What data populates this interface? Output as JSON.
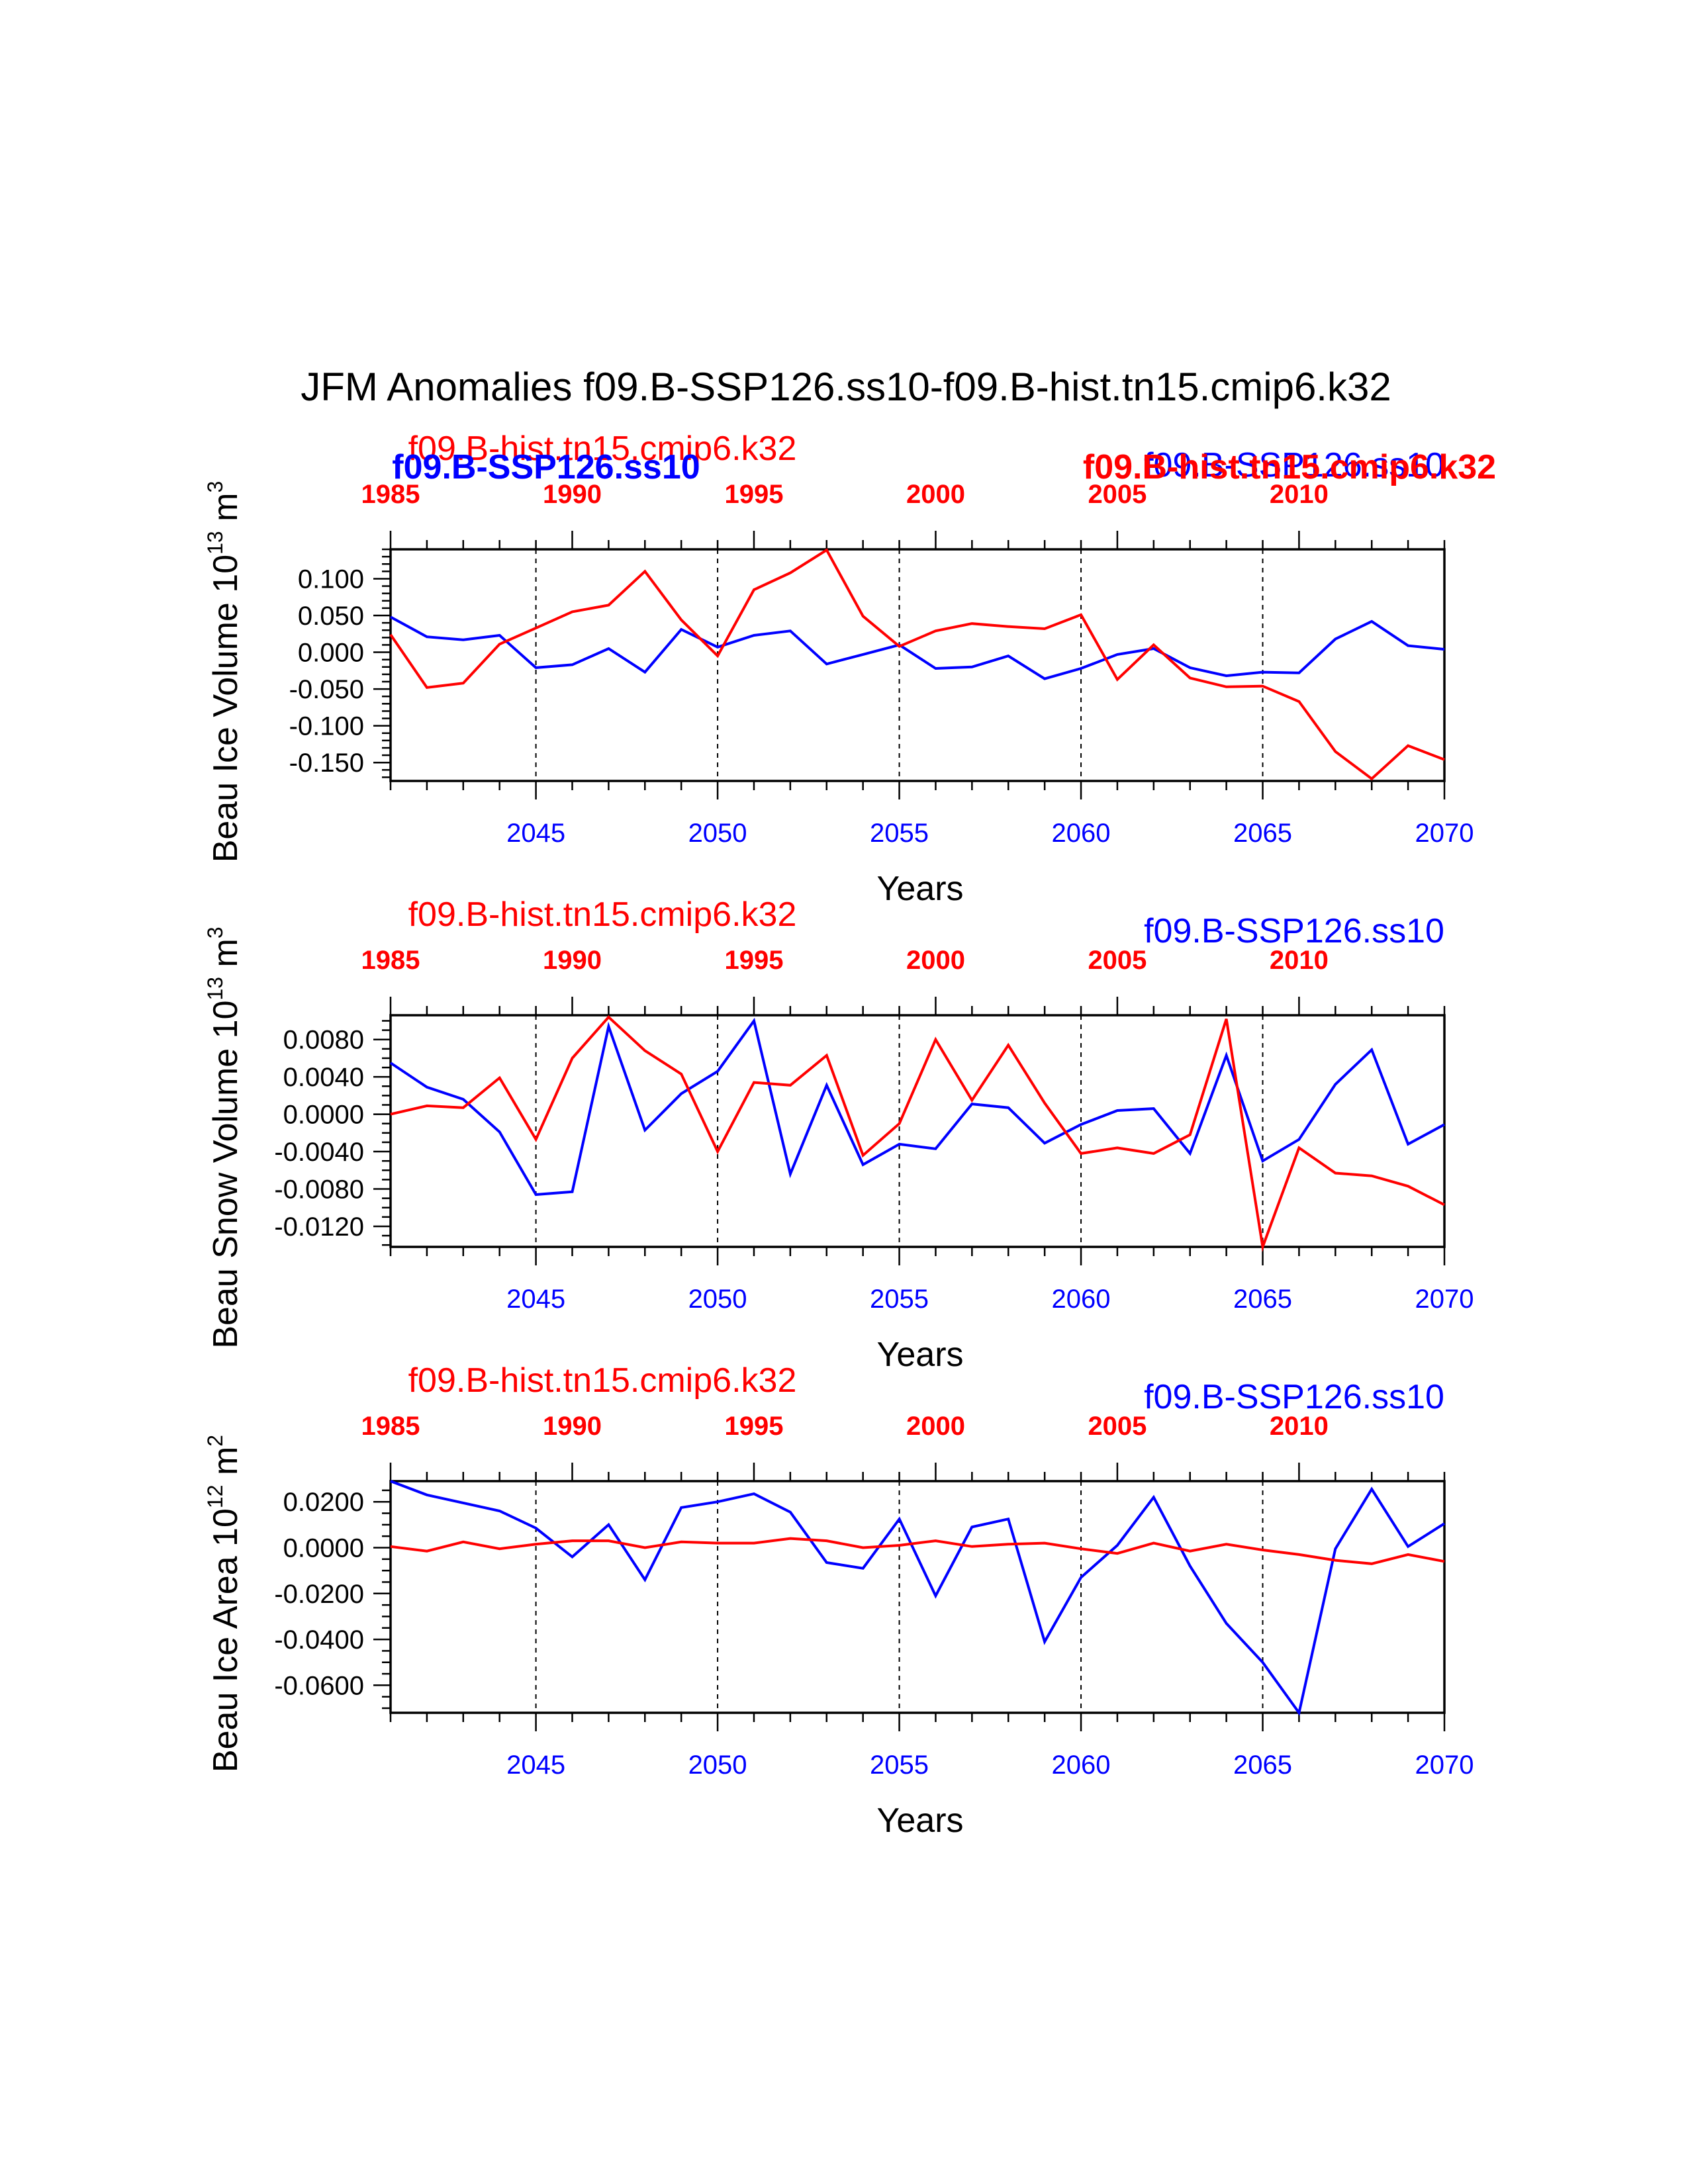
{
  "title": "JFM Anomalies f09.B-SSP126.ss10-f09.B-hist.tn15.cmip6.k32",
  "colors": {
    "hist": "#ff0000",
    "ssp": "#0000ff",
    "axis": "#000000"
  },
  "chart_data": [
    {
      "type": "line",
      "ylabel_main": "Beau Ice Volume 10",
      "ylabel_exp": "13",
      "ylabel_unit": " m",
      "ylabel_unit_exp": "3",
      "xlabel": "Years",
      "ylim": [
        -0.175,
        0.14
      ],
      "yticks": [
        0.1,
        0.05,
        0.0,
        -0.05,
        -0.1,
        -0.15
      ],
      "ytick_labels": [
        "0.100",
        "0.050",
        "0.000",
        "-0.050",
        "-0.100",
        "-0.150"
      ],
      "yminor": 0.01,
      "bottom_axis": {
        "range": [
          2041,
          2070
        ],
        "ticks": [
          2045,
          2050,
          2055,
          2060,
          2065,
          2070
        ],
        "labels": [
          "2045",
          "2050",
          "2055",
          "2060",
          "2065",
          "2070"
        ]
      },
      "top_axis": {
        "range": [
          1985,
          2014
        ],
        "ticks": [
          1985,
          1990,
          1995,
          2000,
          2005,
          2010
        ],
        "labels": [
          "1985",
          "1990",
          "1995",
          "2000",
          "2005",
          "2010"
        ]
      },
      "vlines": [
        2045,
        2050,
        2055,
        2060,
        2065
      ],
      "legend_hist": "f09.B-hist.tn15.cmip6.k32",
      "legend_ssp": "f09.B-SSP126.ss10",
      "bold_ssp": "f09.B-SSP126.ss10",
      "bold_hist": "f09.B-hist.tn15.cmip6.k32",
      "series": [
        {
          "name": "f09.B-SSP126.ss10",
          "color": "#0000ff",
          "x": [
            2041,
            2042,
            2043,
            2044,
            2045,
            2046,
            2047,
            2048,
            2049,
            2050,
            2051,
            2052,
            2053,
            2054,
            2055,
            2056,
            2057,
            2058,
            2059,
            2060,
            2061,
            2062,
            2063,
            2064,
            2065,
            2066,
            2067,
            2068,
            2069,
            2070
          ],
          "y": [
            0.048,
            0.021,
            0.017,
            0.023,
            -0.021,
            -0.017,
            0.005,
            -0.027,
            0.031,
            0.007,
            0.023,
            0.029,
            -0.016,
            -0.003,
            0.01,
            -0.022,
            -0.02,
            -0.005,
            -0.036,
            -0.022,
            -0.003,
            0.005,
            -0.021,
            -0.032,
            -0.027,
            -0.028,
            0.018,
            0.042,
            0.009,
            0.004
          ]
        },
        {
          "name": "f09.B-hist.tn15.cmip6.k32",
          "color": "#ff0000",
          "x": [
            2041,
            2042,
            2043,
            2044,
            2045,
            2046,
            2047,
            2048,
            2049,
            2050,
            2051,
            2052,
            2053,
            2054,
            2055,
            2056,
            2057,
            2058,
            2059,
            2060,
            2061,
            2062,
            2063,
            2064,
            2065,
            2066,
            2067,
            2068,
            2069,
            2070
          ],
          "y": [
            0.024,
            -0.048,
            -0.042,
            0.011,
            0.033,
            0.055,
            0.064,
            0.11,
            0.044,
            -0.005,
            0.085,
            0.108,
            0.139,
            0.049,
            0.008,
            0.029,
            0.039,
            0.035,
            0.032,
            0.051,
            -0.037,
            0.01,
            -0.035,
            -0.047,
            -0.046,
            -0.067,
            -0.135,
            -0.172,
            -0.127,
            -0.146
          ]
        }
      ]
    },
    {
      "type": "line",
      "ylabel_main": "Beau Snow Volume 10",
      "ylabel_exp": "13",
      "ylabel_unit": " m",
      "ylabel_unit_exp": "3",
      "xlabel": "Years",
      "ylim": [
        -0.0142,
        0.0106
      ],
      "yticks": [
        0.008,
        0.004,
        0.0,
        -0.004,
        -0.008,
        -0.012
      ],
      "ytick_labels": [
        "0.0080",
        "0.0040",
        "0.0000",
        "-0.0040",
        "-0.0080",
        "-0.0120"
      ],
      "yminor": 0.001,
      "bottom_axis": {
        "range": [
          2041,
          2070
        ],
        "ticks": [
          2045,
          2050,
          2055,
          2060,
          2065,
          2070
        ],
        "labels": [
          "2045",
          "2050",
          "2055",
          "2060",
          "2065",
          "2070"
        ]
      },
      "top_axis": {
        "range": [
          1985,
          2014
        ],
        "ticks": [
          1985,
          1990,
          1995,
          2000,
          2005,
          2010
        ],
        "labels": [
          "1985",
          "1990",
          "1995",
          "2000",
          "2005",
          "2010"
        ]
      },
      "vlines": [
        2045,
        2050,
        2055,
        2060,
        2065
      ],
      "legend_hist": "f09.B-hist.tn15.cmip6.k32",
      "legend_ssp": "f09.B-SSP126.ss10",
      "series": [
        {
          "name": "f09.B-SSP126.ss10",
          "color": "#0000ff",
          "x": [
            2041,
            2042,
            2043,
            2044,
            2045,
            2046,
            2047,
            2048,
            2049,
            2050,
            2051,
            2052,
            2053,
            2054,
            2055,
            2056,
            2057,
            2058,
            2059,
            2060,
            2061,
            2062,
            2063,
            2064,
            2065,
            2066,
            2067,
            2068,
            2069,
            2070
          ],
          "y": [
            0.0055,
            0.0029,
            0.0016,
            -0.0019,
            -0.0086,
            -0.0083,
            0.0094,
            -0.0017,
            0.0022,
            0.0046,
            0.01,
            -0.0064,
            0.0031,
            -0.0054,
            -0.0032,
            -0.0037,
            0.0011,
            0.0007,
            -0.0031,
            -0.0011,
            0.0004,
            0.0006,
            -0.0042,
            0.0063,
            -0.005,
            -0.0027,
            0.0032,
            0.0069,
            -0.0032,
            -0.0011
          ]
        },
        {
          "name": "f09.B-hist.tn15.cmip6.k32",
          "color": "#ff0000",
          "x": [
            2041,
            2042,
            2043,
            2044,
            2045,
            2046,
            2047,
            2048,
            2049,
            2050,
            2051,
            2052,
            2053,
            2054,
            2055,
            2056,
            2057,
            2058,
            2059,
            2060,
            2061,
            2062,
            2063,
            2064,
            2065,
            2066,
            2067,
            2068,
            2069,
            2070
          ],
          "y": [
            0.0,
            0.0009,
            0.0007,
            0.0039,
            -0.0027,
            0.006,
            0.0104,
            0.0068,
            0.0043,
            -0.004,
            0.0034,
            0.0031,
            0.0063,
            -0.0044,
            -0.001,
            0.008,
            0.0015,
            0.0074,
            0.0012,
            -0.0042,
            -0.0036,
            -0.0042,
            -0.0022,
            0.0102,
            -0.0142,
            -0.0036,
            -0.0063,
            -0.0066,
            -0.0077,
            -0.0097
          ]
        }
      ]
    },
    {
      "type": "line",
      "ylabel_main": "Beau Ice Area 10",
      "ylabel_exp": "12",
      "ylabel_unit": " m",
      "ylabel_unit_exp": "2",
      "xlabel": "Years",
      "ylim": [
        -0.072,
        0.029
      ],
      "yticks": [
        0.02,
        0.0,
        -0.02,
        -0.04,
        -0.06
      ],
      "ytick_labels": [
        "0.0200",
        "0.0000",
        "-0.0200",
        "-0.0400",
        "-0.0600"
      ],
      "yminor": 0.005,
      "bottom_axis": {
        "range": [
          2041,
          2070
        ],
        "ticks": [
          2045,
          2050,
          2055,
          2060,
          2065,
          2070
        ],
        "labels": [
          "2045",
          "2050",
          "2055",
          "2060",
          "2065",
          "2070"
        ]
      },
      "top_axis": {
        "range": [
          1985,
          2014
        ],
        "ticks": [
          1985,
          1990,
          1995,
          2000,
          2005,
          2010
        ],
        "labels": [
          "1985",
          "1990",
          "1995",
          "2000",
          "2005",
          "2010"
        ]
      },
      "vlines": [
        2045,
        2050,
        2055,
        2060,
        2065
      ],
      "legend_hist": "f09.B-hist.tn15.cmip6.k32",
      "legend_ssp": "f09.B-SSP126.ss10",
      "series": [
        {
          "name": "f09.B-SSP126.ss10",
          "color": "#0000ff",
          "x": [
            2041,
            2042,
            2043,
            2044,
            2045,
            2046,
            2047,
            2048,
            2049,
            2050,
            2051,
            2052,
            2053,
            2054,
            2055,
            2056,
            2057,
            2058,
            2059,
            2060,
            2061,
            2062,
            2063,
            2064,
            2065,
            2066,
            2067,
            2068,
            2069,
            2070
          ],
          "y": [
            0.029,
            0.023,
            0.0195,
            0.016,
            0.0085,
            -0.004,
            0.01,
            -0.014,
            0.0175,
            0.02,
            0.0235,
            0.0155,
            -0.0065,
            -0.009,
            0.0125,
            -0.021,
            0.009,
            0.0125,
            -0.041,
            -0.013,
            0.001,
            0.022,
            -0.008,
            -0.033,
            -0.05,
            -0.072,
            -0.0005,
            0.0255,
            0.0005,
            0.0105
          ]
        },
        {
          "name": "f09.B-hist.tn15.cmip6.k32",
          "color": "#ff0000",
          "x": [
            2041,
            2042,
            2043,
            2044,
            2045,
            2046,
            2047,
            2048,
            2049,
            2050,
            2051,
            2052,
            2053,
            2054,
            2055,
            2056,
            2057,
            2058,
            2059,
            2060,
            2061,
            2062,
            2063,
            2064,
            2065,
            2066,
            2067,
            2068,
            2069,
            2070
          ],
          "y": [
            0.0005,
            -0.0015,
            0.0025,
            -0.0005,
            0.0015,
            0.003,
            0.003,
            0.0,
            0.0025,
            0.002,
            0.002,
            0.004,
            0.003,
            0.0,
            0.001,
            0.003,
            0.0005,
            0.0015,
            0.002,
            -0.0005,
            -0.0025,
            0.002,
            -0.0015,
            0.0015,
            -0.001,
            -0.003,
            -0.0055,
            -0.007,
            -0.003,
            -0.006
          ]
        }
      ]
    }
  ]
}
